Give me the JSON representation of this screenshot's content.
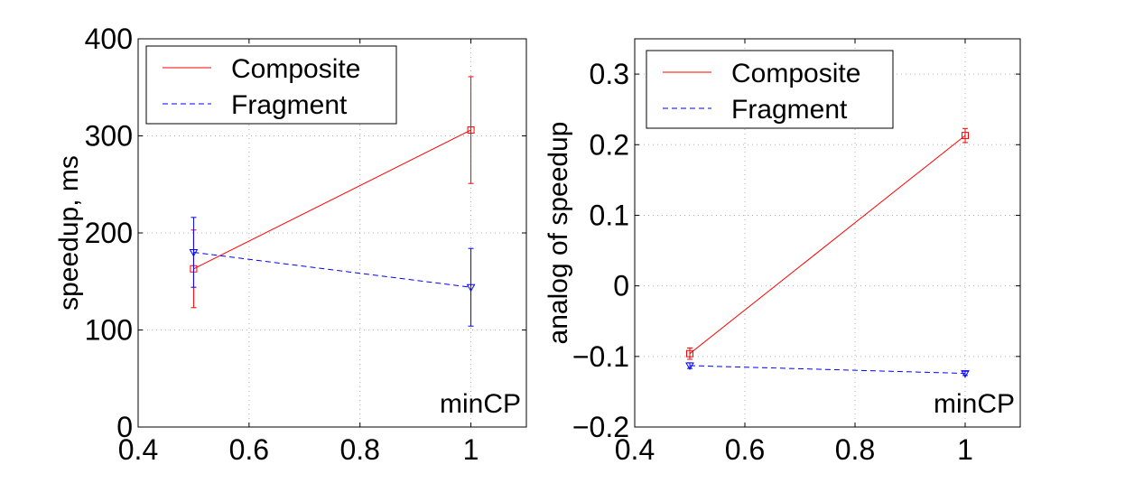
{
  "chart_data": [
    {
      "type": "line",
      "title": "",
      "xlabel": "minCP",
      "ylabel": "speedup, ms",
      "xlim": [
        0.4,
        1.1
      ],
      "ylim": [
        0,
        400
      ],
      "xticks": [
        0.4,
        0.6,
        0.8,
        1
      ],
      "xtick_labels": [
        "0.4",
        "0.6",
        "0.8",
        "1"
      ],
      "yticks": [
        0,
        100,
        200,
        300,
        400
      ],
      "ytick_labels": [
        "0",
        "100",
        "200",
        "300",
        "400"
      ],
      "grid": true,
      "legend_position": "top-left",
      "series": [
        {
          "name": "Composite",
          "color": "#ff0000",
          "dash": "solid",
          "marker": "square",
          "x": [
            0.5,
            1
          ],
          "y": [
            163,
            306
          ],
          "err": [
            40,
            55
          ]
        },
        {
          "name": "Fragment",
          "color": "#0000ff",
          "dash": "dashed",
          "marker": "triangle-down",
          "x": [
            0.5,
            1
          ],
          "y": [
            180,
            144
          ],
          "err": [
            36,
            40
          ]
        }
      ]
    },
    {
      "type": "line",
      "title": "",
      "xlabel": "minCP",
      "ylabel": "analog of speedup",
      "xlim": [
        0.4,
        1.1
      ],
      "ylim": [
        -0.2,
        0.35
      ],
      "xticks": [
        0.4,
        0.6,
        0.8,
        1
      ],
      "xtick_labels": [
        "0.4",
        "0.6",
        "0.8",
        "1"
      ],
      "yticks": [
        -0.2,
        -0.1,
        0,
        0.1,
        0.2,
        0.3
      ],
      "ytick_labels": [
        "−0.2",
        "−0.1",
        "0",
        "0.1",
        "0.2",
        "0.3"
      ],
      "grid": true,
      "legend_position": "top-left",
      "series": [
        {
          "name": "Composite",
          "color": "#ff0000",
          "dash": "solid",
          "marker": "square",
          "x": [
            0.5,
            1
          ],
          "y": [
            -0.096,
            0.213
          ],
          "err": [
            0.008,
            0.01
          ]
        },
        {
          "name": "Fragment",
          "color": "#0000ff",
          "dash": "dashed",
          "marker": "triangle-down",
          "x": [
            0.5,
            1
          ],
          "y": [
            -0.113,
            -0.124
          ],
          "err": [
            0.004,
            0.003
          ]
        }
      ]
    }
  ]
}
